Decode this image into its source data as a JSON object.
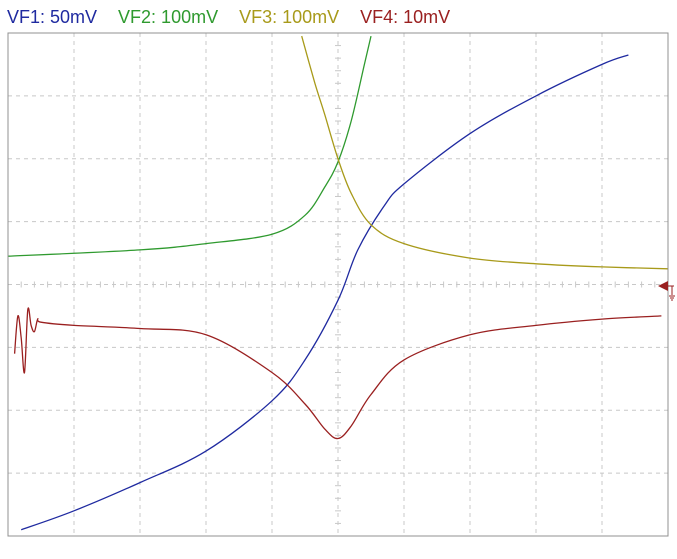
{
  "legend": {
    "vf1": "VF1: 50mV",
    "vf2": "VF2: 100mV",
    "vf3": "VF3: 100mV",
    "vf4": "VF4: 10mV"
  },
  "colors": {
    "vf1": "#1f2aa0",
    "vf2": "#2f9a2f",
    "vf3": "#a89a1a",
    "vf4": "#9a2020",
    "grid": "#c8c8c8",
    "frame": "#909090",
    "marker": "#9a2020"
  },
  "chart_data": {
    "type": "line",
    "grid": true,
    "divisions": {
      "x": 10,
      "y": 8
    },
    "xlim": [
      -5,
      5
    ],
    "ylim": [
      -4,
      4
    ],
    "series": [
      {
        "name": "VF1: 50mV",
        "color": "#1f2aa0",
        "x": [
          -4.8,
          -4.0,
          -3.0,
          -2.0,
          -1.0,
          -0.5,
          0.0,
          0.3,
          0.7,
          1.0,
          2.0,
          3.0,
          4.0,
          4.4
        ],
        "y": [
          -3.9,
          -3.6,
          -3.15,
          -2.65,
          -1.85,
          -1.2,
          -0.25,
          0.55,
          1.25,
          1.6,
          2.4,
          3.0,
          3.5,
          3.65
        ]
      },
      {
        "name": "VF2: 100mV",
        "color": "#2f9a2f",
        "x": [
          -5.0,
          -3.0,
          -2.0,
          -1.0,
          -0.5,
          -0.2,
          0.0,
          0.2,
          0.4,
          0.5
        ],
        "y": [
          0.45,
          0.55,
          0.65,
          0.8,
          1.1,
          1.55,
          1.95,
          2.6,
          3.5,
          3.95
        ]
      },
      {
        "name": "VF3: 100mV",
        "color": "#a89a1a",
        "x": [
          -0.55,
          -0.35,
          -0.2,
          0.0,
          0.2,
          0.5,
          1.0,
          2.0,
          3.0,
          4.0,
          5.0
        ],
        "y": [
          3.95,
          3.2,
          2.7,
          2.0,
          1.45,
          0.95,
          0.65,
          0.42,
          0.33,
          0.28,
          0.25
        ]
      },
      {
        "name": "VF4: 10mV",
        "color": "#9a2020",
        "x": [
          -4.9,
          -4.85,
          -4.8,
          -4.75,
          -4.7,
          -4.65,
          -4.6,
          -4.55,
          -4.5,
          -4.0,
          -3.0,
          -2.0,
          -1.0,
          -0.5,
          -0.2,
          0.0,
          0.2,
          0.5,
          1.0,
          2.0,
          3.0,
          4.0,
          4.9
        ],
        "y": [
          -1.1,
          -0.5,
          -0.85,
          -1.4,
          -0.4,
          -0.65,
          -0.75,
          -0.55,
          -0.6,
          -0.65,
          -0.7,
          -0.8,
          -1.4,
          -1.9,
          -2.3,
          -2.45,
          -2.25,
          -1.75,
          -1.2,
          -0.8,
          -0.65,
          -0.55,
          -0.5
        ]
      }
    ]
  }
}
